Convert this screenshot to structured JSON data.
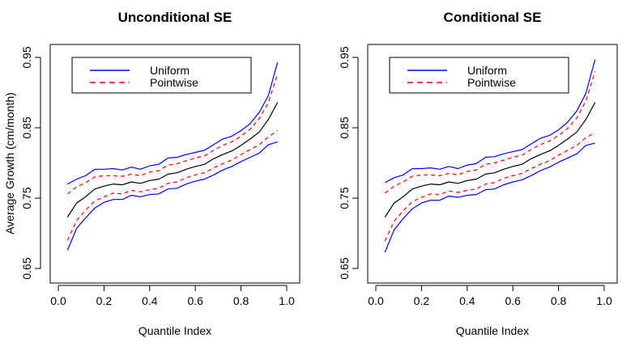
{
  "chart_data": [
    {
      "type": "line",
      "title": "Unconditional SE",
      "xlabel": "Quantile Index",
      "ylabel": "Average Growth (cm/month)",
      "xlim": [
        0,
        1
      ],
      "ylim": [
        0.65,
        0.95
      ],
      "xticks": [
        0.0,
        0.2,
        0.4,
        0.6,
        0.8,
        1.0
      ],
      "xtick_labels": [
        "0.0",
        "0.2",
        "0.4",
        "0.6",
        "0.8",
        "1.0"
      ],
      "yticks": [
        0.65,
        0.75,
        0.85,
        0.95
      ],
      "ytick_labels": [
        "0.65",
        "0.75",
        "0.85",
        "0.95"
      ],
      "grid": false,
      "legend": {
        "placement": "top-left",
        "entries": [
          {
            "label": "Uniform",
            "color": "#0000ff",
            "dash": "solid"
          },
          {
            "label": "Pointwise",
            "color": "#ff0000",
            "dash": "dashed"
          }
        ]
      },
      "x": [
        0.04,
        0.08,
        0.12,
        0.16,
        0.2,
        0.24,
        0.28,
        0.32,
        0.36,
        0.4,
        0.44,
        0.48,
        0.52,
        0.56,
        0.6,
        0.64,
        0.68,
        0.72,
        0.76,
        0.8,
        0.84,
        0.88,
        0.92,
        0.96
      ],
      "series": [
        {
          "name": "Uniform upper",
          "color": "#0000ff",
          "dash": "solid",
          "values": [
            0.77,
            0.777,
            0.782,
            0.791,
            0.791,
            0.792,
            0.79,
            0.794,
            0.791,
            0.796,
            0.798,
            0.807,
            0.808,
            0.812,
            0.815,
            0.818,
            0.826,
            0.834,
            0.838,
            0.846,
            0.856,
            0.872,
            0.896,
            0.943
          ]
        },
        {
          "name": "Pointwise upper",
          "color": "#ff0000",
          "dash": "dashed",
          "values": [
            0.756,
            0.766,
            0.772,
            0.78,
            0.782,
            0.782,
            0.781,
            0.784,
            0.782,
            0.787,
            0.789,
            0.797,
            0.799,
            0.803,
            0.807,
            0.81,
            0.818,
            0.825,
            0.83,
            0.838,
            0.848,
            0.863,
            0.886,
            0.926
          ]
        },
        {
          "name": "Estimate",
          "color": "#000000",
          "dash": "solid",
          "values": [
            0.723,
            0.743,
            0.752,
            0.763,
            0.767,
            0.77,
            0.769,
            0.773,
            0.771,
            0.775,
            0.777,
            0.784,
            0.786,
            0.791,
            0.795,
            0.798,
            0.806,
            0.812,
            0.817,
            0.825,
            0.834,
            0.844,
            0.862,
            0.886
          ]
        },
        {
          "name": "Pointwise lower",
          "color": "#ff0000",
          "dash": "dashed",
          "values": [
            0.69,
            0.718,
            0.733,
            0.746,
            0.752,
            0.757,
            0.756,
            0.761,
            0.759,
            0.762,
            0.764,
            0.771,
            0.773,
            0.779,
            0.783,
            0.786,
            0.793,
            0.799,
            0.804,
            0.812,
            0.819,
            0.826,
            0.837,
            0.846
          ]
        },
        {
          "name": "Uniform lower",
          "color": "#0000ff",
          "dash": "solid",
          "values": [
            0.676,
            0.707,
            0.722,
            0.736,
            0.744,
            0.748,
            0.748,
            0.754,
            0.752,
            0.755,
            0.756,
            0.763,
            0.764,
            0.77,
            0.774,
            0.777,
            0.783,
            0.79,
            0.795,
            0.802,
            0.808,
            0.814,
            0.826,
            0.83
          ]
        }
      ]
    },
    {
      "type": "line",
      "title": "Conditional SE",
      "xlabel": "Quantile Index",
      "ylabel": "",
      "xlim": [
        0,
        1
      ],
      "ylim": [
        0.65,
        0.95
      ],
      "xticks": [
        0.0,
        0.2,
        0.4,
        0.6,
        0.8,
        1.0
      ],
      "xtick_labels": [
        "0.0",
        "0.2",
        "0.4",
        "0.6",
        "0.8",
        "1.0"
      ],
      "yticks": [
        0.65,
        0.75,
        0.85,
        0.95
      ],
      "ytick_labels": [
        "0.65",
        "0.75",
        "0.85",
        "0.95"
      ],
      "grid": false,
      "legend": {
        "placement": "top-left",
        "entries": [
          {
            "label": "Uniform",
            "color": "#0000ff",
            "dash": "solid"
          },
          {
            "label": "Pointwise",
            "color": "#ff0000",
            "dash": "dashed"
          }
        ]
      },
      "x": [
        0.04,
        0.08,
        0.12,
        0.16,
        0.2,
        0.24,
        0.28,
        0.32,
        0.36,
        0.4,
        0.44,
        0.48,
        0.52,
        0.56,
        0.6,
        0.64,
        0.68,
        0.72,
        0.76,
        0.8,
        0.84,
        0.88,
        0.92,
        0.96
      ],
      "series": [
        {
          "name": "Uniform upper",
          "color": "#0000ff",
          "dash": "solid",
          "values": [
            0.772,
            0.779,
            0.783,
            0.792,
            0.792,
            0.793,
            0.791,
            0.795,
            0.792,
            0.797,
            0.799,
            0.808,
            0.809,
            0.813,
            0.816,
            0.819,
            0.827,
            0.835,
            0.839,
            0.847,
            0.858,
            0.874,
            0.899,
            0.947
          ]
        },
        {
          "name": "Pointwise upper",
          "color": "#ff0000",
          "dash": "dashed",
          "values": [
            0.757,
            0.767,
            0.773,
            0.781,
            0.783,
            0.783,
            0.782,
            0.785,
            0.783,
            0.788,
            0.79,
            0.798,
            0.8,
            0.804,
            0.808,
            0.811,
            0.819,
            0.826,
            0.831,
            0.839,
            0.849,
            0.864,
            0.888,
            0.93
          ]
        },
        {
          "name": "Estimate",
          "color": "#000000",
          "dash": "solid",
          "values": [
            0.723,
            0.743,
            0.752,
            0.763,
            0.767,
            0.77,
            0.769,
            0.773,
            0.771,
            0.775,
            0.777,
            0.784,
            0.786,
            0.791,
            0.795,
            0.798,
            0.806,
            0.812,
            0.817,
            0.825,
            0.834,
            0.844,
            0.862,
            0.886
          ]
        },
        {
          "name": "Pointwise lower",
          "color": "#ff0000",
          "dash": "dashed",
          "values": [
            0.689,
            0.717,
            0.732,
            0.745,
            0.751,
            0.756,
            0.755,
            0.76,
            0.758,
            0.761,
            0.763,
            0.77,
            0.772,
            0.778,
            0.782,
            0.785,
            0.792,
            0.798,
            0.803,
            0.811,
            0.818,
            0.825,
            0.836,
            0.843
          ]
        },
        {
          "name": "Uniform lower",
          "color": "#0000ff",
          "dash": "solid",
          "values": [
            0.673,
            0.705,
            0.721,
            0.735,
            0.743,
            0.747,
            0.747,
            0.753,
            0.751,
            0.754,
            0.755,
            0.762,
            0.763,
            0.769,
            0.773,
            0.776,
            0.782,
            0.789,
            0.794,
            0.801,
            0.807,
            0.813,
            0.825,
            0.828
          ]
        }
      ]
    }
  ]
}
